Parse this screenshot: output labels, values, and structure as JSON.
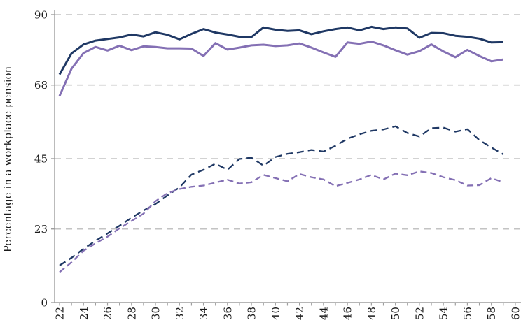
{
  "chart_data": {
    "type": "line",
    "title": "",
    "xlabel": "",
    "ylabel": "Percentage in a workplace pension",
    "ylim": [
      0,
      90
    ],
    "xlim": [
      21.6,
      60.6
    ],
    "y_ticks": [
      0,
      23,
      45,
      68,
      90
    ],
    "y_tick_labels": [
      "0",
      "23",
      "45",
      "68",
      "90"
    ],
    "x_minor_ticks_every": 1,
    "x_labeled_ticks": [
      22,
      24,
      26,
      28,
      30,
      32,
      34,
      36,
      38,
      40,
      42,
      44,
      46,
      48,
      50,
      52,
      54,
      56,
      58,
      60
    ],
    "x_label_rotation_deg": -90,
    "grid": "horizontal-dashed",
    "legend_position": "none",
    "colors": {
      "navy": "#1F3864",
      "purple": "#8470B4",
      "gridline": "#C3C3C3",
      "axis": "#9E9E9E",
      "text": "#1A1A1A"
    },
    "x": [
      22,
      23,
      24,
      25,
      26,
      27,
      28,
      29,
      30,
      31,
      32,
      33,
      34,
      35,
      36,
      37,
      38,
      39,
      40,
      41,
      42,
      43,
      44,
      45,
      46,
      47,
      48,
      49,
      50,
      51,
      52,
      53,
      54,
      55,
      56,
      57,
      58,
      59
    ],
    "series": [
      {
        "name": "solid-navy",
        "style": "solid",
        "color": "#1F3864",
        "stroke_width": 3,
        "values": [
          71.3,
          77.9,
          80.7,
          81.9,
          82.4,
          82.9,
          83.8,
          83.2,
          84.5,
          83.7,
          82.3,
          84.0,
          85.5,
          84.4,
          83.8,
          83.1,
          83.0,
          86.0,
          85.3,
          84.9,
          85.1,
          83.9,
          84.8,
          85.5,
          86.0,
          85.1,
          86.2,
          85.5,
          86.0,
          85.7,
          82.8,
          84.3,
          84.2,
          83.4,
          83.1,
          82.5,
          81.3,
          81.4
        ]
      },
      {
        "name": "solid-purple",
        "style": "solid",
        "color": "#8470B4",
        "stroke_width": 3,
        "values": [
          64.6,
          73.1,
          78.0,
          79.9,
          78.8,
          80.3,
          78.9,
          80.1,
          79.9,
          79.5,
          79.5,
          79.4,
          77.1,
          81.1,
          79.1,
          79.7,
          80.4,
          80.6,
          80.2,
          80.4,
          81.0,
          79.7,
          78.2,
          76.8,
          81.3,
          80.9,
          81.6,
          80.4,
          78.9,
          77.5,
          78.6,
          80.7,
          78.5,
          76.7,
          79.0,
          77.1,
          75.4,
          76.0
        ]
      },
      {
        "name": "dashed-navy",
        "style": "dashed",
        "color": "#1F3864",
        "stroke_width": 2.3,
        "dash": "10 6",
        "values": [
          11.6,
          14.0,
          16.8,
          19.3,
          21.6,
          24.0,
          26.5,
          28.8,
          30.8,
          33.5,
          36.0,
          40.0,
          41.5,
          43.4,
          41.5,
          44.9,
          45.3,
          42.8,
          45.5,
          46.5,
          47.0,
          47.7,
          47.2,
          49.0,
          51.2,
          52.6,
          53.7,
          54.1,
          55.1,
          53.0,
          51.9,
          54.5,
          54.7,
          53.4,
          54.2,
          50.8,
          48.5,
          46.3
        ]
      },
      {
        "name": "dashed-purple",
        "style": "dashed",
        "color": "#8470B4",
        "stroke_width": 2.3,
        "dash": "9 5",
        "values": [
          9.5,
          12.6,
          16.2,
          18.5,
          20.6,
          23.2,
          25.5,
          27.8,
          31.7,
          34.2,
          35.5,
          36.2,
          36.6,
          37.5,
          38.4,
          37.2,
          37.6,
          39.9,
          38.9,
          37.9,
          40.2,
          39.2,
          38.5,
          36.4,
          37.4,
          38.5,
          39.9,
          38.5,
          40.3,
          39.8,
          41.0,
          40.5,
          39.2,
          38.3,
          36.6,
          36.7,
          38.9,
          37.6
        ]
      }
    ]
  }
}
